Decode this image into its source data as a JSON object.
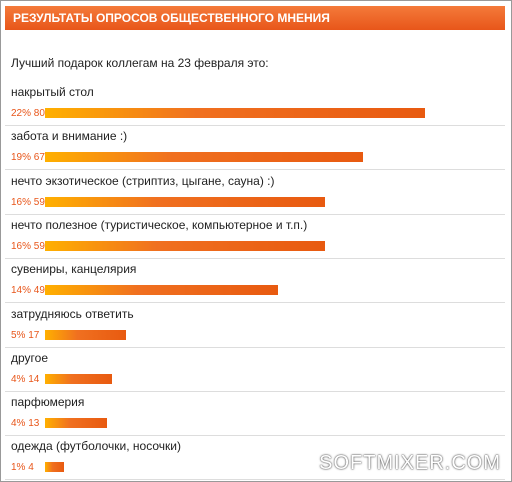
{
  "header": {
    "title": "РЕЗУЛЬТАТЫ ОПРОСОВ ОБЩЕСТВЕННОГО МНЕНИЯ"
  },
  "question": "Лучший подарок коллегам на 23 февраля это:",
  "options": [
    {
      "label": "накрытый стол",
      "percent": "22%",
      "votes": 80
    },
    {
      "label": "забота и внимание :)",
      "percent": "19%",
      "votes": 67
    },
    {
      "label": "нечто экзотическое (стриптиз, цыгане, сауна) :)",
      "percent": "16%",
      "votes": 59
    },
    {
      "label": "нечто полезное (туристическое, компьютерное и т.п.)",
      "percent": "16%",
      "votes": 59
    },
    {
      "label": "сувениры, канцелярия",
      "percent": "14%",
      "votes": 49
    },
    {
      "label": "затрудняюсь ответить",
      "percent": "5%",
      "votes": 17
    },
    {
      "label": "другое",
      "percent": "4%",
      "votes": 14
    },
    {
      "label": "парфюмерия",
      "percent": "4%",
      "votes": 13
    },
    {
      "label": "одежда (футболочки, носочки)",
      "percent": "1%",
      "votes": 4
    }
  ],
  "watermark": "SOFTMIXER.COM"
}
